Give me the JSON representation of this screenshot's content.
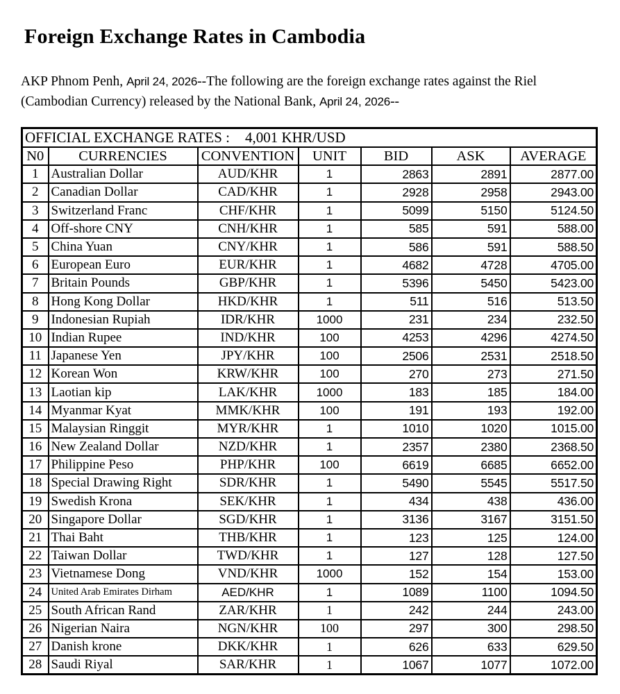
{
  "page": {
    "title": "Foreign Exchange Rates in Cambodia",
    "intro": {
      "part1": "AKP Phnom Penh, ",
      "date1": "April 24, 2026",
      "part2": "--The following are the foreign exchange rates against the Riel (Cambodian Currency) released by the National Bank, ",
      "date2": "April 24, 2026",
      "part3": "--"
    }
  },
  "table": {
    "official_rates_label": "OFFICIAL EXCHANGE RATES :",
    "official_rates_value": "4,001 KHR/USD",
    "columns": [
      "N0",
      "CURRENCIES",
      "CONVENTION",
      "UNIT",
      "BID",
      "ASK",
      "AVERAGE"
    ],
    "rows": [
      {
        "no": "1",
        "currency": "Australian Dollar",
        "convention": "AUD/KHR",
        "unit": "1",
        "bid": "2863",
        "ask": "2891",
        "average": "2877.00"
      },
      {
        "no": "2",
        "currency": "Canadian Dollar",
        "convention": "CAD/KHR",
        "unit": "1",
        "bid": "2928",
        "ask": "2958",
        "average": "2943.00"
      },
      {
        "no": "3",
        "currency": "Switzerland Franc",
        "convention": "CHF/KHR",
        "unit": "1",
        "bid": "5099",
        "ask": "5150",
        "average": "5124.50"
      },
      {
        "no": "4",
        "currency": "Off-shore CNY",
        "convention": "CNH/KHR",
        "unit": "1",
        "bid": "585",
        "ask": "591",
        "average": "588.00"
      },
      {
        "no": "5",
        "currency": "China Yuan",
        "convention": "CNY/KHR",
        "unit": "1",
        "bid": "586",
        "ask": "591",
        "average": "588.50"
      },
      {
        "no": "6",
        "currency": "European Euro",
        "convention": "EUR/KHR",
        "unit": "1",
        "bid": "4682",
        "ask": "4728",
        "average": "4705.00"
      },
      {
        "no": "7",
        "currency": "Britain Pounds",
        "convention": "GBP/KHR",
        "unit": "1",
        "bid": "5396",
        "ask": "5450",
        "average": "5423.00"
      },
      {
        "no": "8",
        "currency": "Hong Kong Dollar",
        "convention": "HKD/KHR",
        "unit": "1",
        "bid": "511",
        "ask": "516",
        "average": "513.50"
      },
      {
        "no": "9",
        "currency": "Indonesian Rupiah",
        "convention": "IDR/KHR",
        "unit": "1000",
        "bid": "231",
        "ask": "234",
        "average": "232.50"
      },
      {
        "no": "10",
        "currency": "Indian Rupee",
        "convention": "IND/KHR",
        "unit": "100",
        "bid": "4253",
        "ask": "4296",
        "average": "4274.50"
      },
      {
        "no": "11",
        "currency": "Japanese Yen",
        "convention": "JPY/KHR",
        "unit": "100",
        "bid": "2506",
        "ask": "2531",
        "average": "2518.50"
      },
      {
        "no": "12",
        "currency": "Korean Won",
        "convention": "KRW/KHR",
        "unit": "100",
        "bid": "270",
        "ask": "273",
        "average": "271.50"
      },
      {
        "no": "13",
        "currency": "Laotian kip",
        "convention": "LAK/KHR",
        "unit": "1000",
        "bid": "183",
        "ask": "185",
        "average": "184.00"
      },
      {
        "no": "14",
        "currency": "Myanmar Kyat",
        "convention": "MMK/KHR",
        "unit": "100",
        "bid": "191",
        "ask": "193",
        "average": "192.00"
      },
      {
        "no": "15",
        "currency": "Malaysian Ringgit",
        "convention": "MYR/KHR",
        "unit": "1",
        "bid": "1010",
        "ask": "1020",
        "average": "1015.00"
      },
      {
        "no": "16",
        "currency": "New Zealand Dollar",
        "convention": "NZD/KHR",
        "unit": "1",
        "bid": "2357",
        "ask": "2380",
        "average": "2368.50"
      },
      {
        "no": "17",
        "currency": "Philippine Peso",
        "convention": "PHP/KHR",
        "unit": "100",
        "bid": "6619",
        "ask": "6685",
        "average": "6652.00"
      },
      {
        "no": "18",
        "currency": "Special Drawing Right",
        "convention": "SDR/KHR",
        "unit": "1",
        "bid": "5490",
        "ask": "5545",
        "average": "5517.50"
      },
      {
        "no": "19",
        "currency": "Swedish Krona",
        "convention": "SEK/KHR",
        "unit": "1",
        "bid": "434",
        "ask": "438",
        "average": "436.00"
      },
      {
        "no": "20",
        "currency": "Singapore Dollar",
        "convention": "SGD/KHR",
        "unit": "1",
        "bid": "3136",
        "ask": "3167",
        "average": "3151.50"
      },
      {
        "no": "21",
        "currency": "Thai Baht",
        "convention": "THB/KHR",
        "unit": "1",
        "bid": "123",
        "ask": "125",
        "average": "124.00"
      },
      {
        "no": "22",
        "currency": "Taiwan Dollar",
        "convention": "TWD/KHR",
        "unit": "1",
        "bid": "127",
        "ask": "128",
        "average": "127.50"
      },
      {
        "no": "23",
        "currency": "Vietnamese Dong",
        "convention": "VND/KHR",
        "unit": "1000",
        "bid": "152",
        "ask": "154",
        "average": "153.00"
      },
      {
        "no": "24",
        "currency": "United Arab Emirates Dirham",
        "convention": "AED/KHR",
        "unit": "1",
        "bid": "1089",
        "ask": "1100",
        "average": "1094.50"
      },
      {
        "no": "25",
        "currency": "South African Rand",
        "convention": "ZAR/KHR",
        "unit": "1",
        "bid": "242",
        "ask": "244",
        "average": "243.00"
      },
      {
        "no": "26",
        "currency": "Nigerian Naira",
        "convention": "NGN/KHR",
        "unit": "100",
        "bid": "297",
        "ask": "300",
        "average": "298.50"
      },
      {
        "no": "27",
        "currency": "Danish krone",
        "convention": "DKK/KHR",
        "unit": "1",
        "bid": "626",
        "ask": "633",
        "average": "629.50"
      },
      {
        "no": "28",
        "currency": "Saudi Riyal",
        "convention": "SAR/KHR",
        "unit": "1",
        "bid": "1067",
        "ask": "1077",
        "average": "1072.00"
      }
    ]
  }
}
